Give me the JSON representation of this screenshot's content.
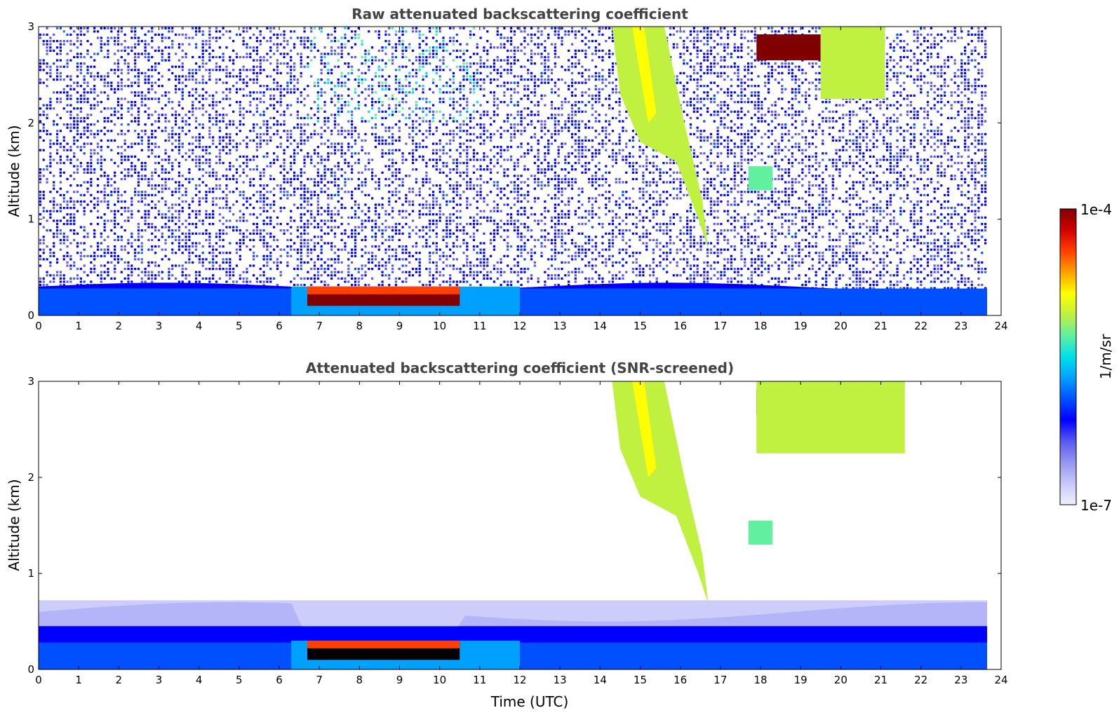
{
  "chart_data": {
    "type": "heatmap",
    "colorbar": {
      "min_label": "1e-7",
      "max_label": "1e-4",
      "label": "1/m/sr",
      "scale": "log",
      "colors": [
        "#f0f0ff",
        "#c8c8f8",
        "#9696f0",
        "#5a5af0",
        "#0000ff",
        "#0050ff",
        "#00a0ff",
        "#00e0e8",
        "#60f0a0",
        "#c0f040",
        "#ffff00",
        "#ffa000",
        "#ff4000",
        "#d00000",
        "#800000"
      ]
    },
    "x_ticks": [
      "0",
      "1",
      "2",
      "3",
      "4",
      "5",
      "6",
      "7",
      "8",
      "9",
      "10",
      "11",
      "12",
      "13",
      "14",
      "15",
      "16",
      "17",
      "18",
      "19",
      "20",
      "21",
      "22",
      "23",
      "24"
    ],
    "y_ticks": [
      "0",
      "1",
      "2",
      "3"
    ],
    "panels": [
      {
        "title": "Raw attenuated backscattering coefficient",
        "xlabel": "",
        "ylabel": "Altitude (km)",
        "xlim": [
          0,
          24
        ],
        "ylim": [
          0,
          3
        ],
        "data_end_hour": 23.65,
        "features": [
          {
            "name": "boundary-layer",
            "t_start": 0,
            "t_end": 23.65,
            "z_bottom": 0,
            "z_top": 0.38,
            "level": 0.32
          },
          {
            "name": "dense-aerosol-layer",
            "t_start": 6.7,
            "t_end": 10.5,
            "z_bottom": 0.1,
            "z_top": 0.3,
            "level": 0.98
          },
          {
            "name": "virga-fall-streak",
            "t_start": 14.3,
            "t_end": 16.7,
            "z_bottom": 0.68,
            "z_top": 3.0,
            "level": 0.6
          },
          {
            "name": "high-cloud-layer",
            "t_start": 17.9,
            "t_end": 19.5,
            "z_bottom": 2.65,
            "z_top": 2.92,
            "level": 1.0
          },
          {
            "name": "cloud-fragment",
            "t_start": 19.5,
            "t_end": 21.1,
            "z_bottom": 2.25,
            "z_top": 3.0,
            "level": 0.62
          },
          {
            "name": "small-cloud",
            "t_start": 17.7,
            "t_end": 18.3,
            "z_bottom": 1.3,
            "z_top": 1.55,
            "level": 0.55
          }
        ]
      },
      {
        "title": "Attenuated backscattering coefficient (SNR-screened)",
        "xlabel": "Time (UTC)",
        "ylabel": "Altitude (km)",
        "xlim": [
          0,
          24
        ],
        "ylim": [
          0,
          3
        ],
        "data_end_hour": 23.65,
        "features": [
          {
            "name": "boundary-layer",
            "t_start": 0,
            "t_end": 23.65,
            "z_bottom": 0,
            "z_top": 0.7,
            "level": 0.28
          },
          {
            "name": "dense-aerosol-layer",
            "t_start": 6.7,
            "t_end": 10.5,
            "z_bottom": 0.1,
            "z_top": 0.3,
            "level": 1.1
          },
          {
            "name": "virga-fall-streak",
            "t_start": 14.3,
            "t_end": 16.7,
            "z_bottom": 0.68,
            "z_top": 3.0,
            "level": 0.6
          },
          {
            "name": "high-cloud-layer",
            "t_start": 17.9,
            "t_end": 19.5,
            "z_bottom": 2.65,
            "z_top": 2.92,
            "level": 1.1
          },
          {
            "name": "cloud-fragment",
            "t_start": 17.9,
            "t_end": 21.6,
            "z_bottom": 2.25,
            "z_top": 3.0,
            "level": 0.6
          },
          {
            "name": "small-cloud",
            "t_start": 17.7,
            "t_end": 18.3,
            "z_bottom": 1.3,
            "z_top": 1.55,
            "level": 0.55
          }
        ]
      }
    ]
  }
}
